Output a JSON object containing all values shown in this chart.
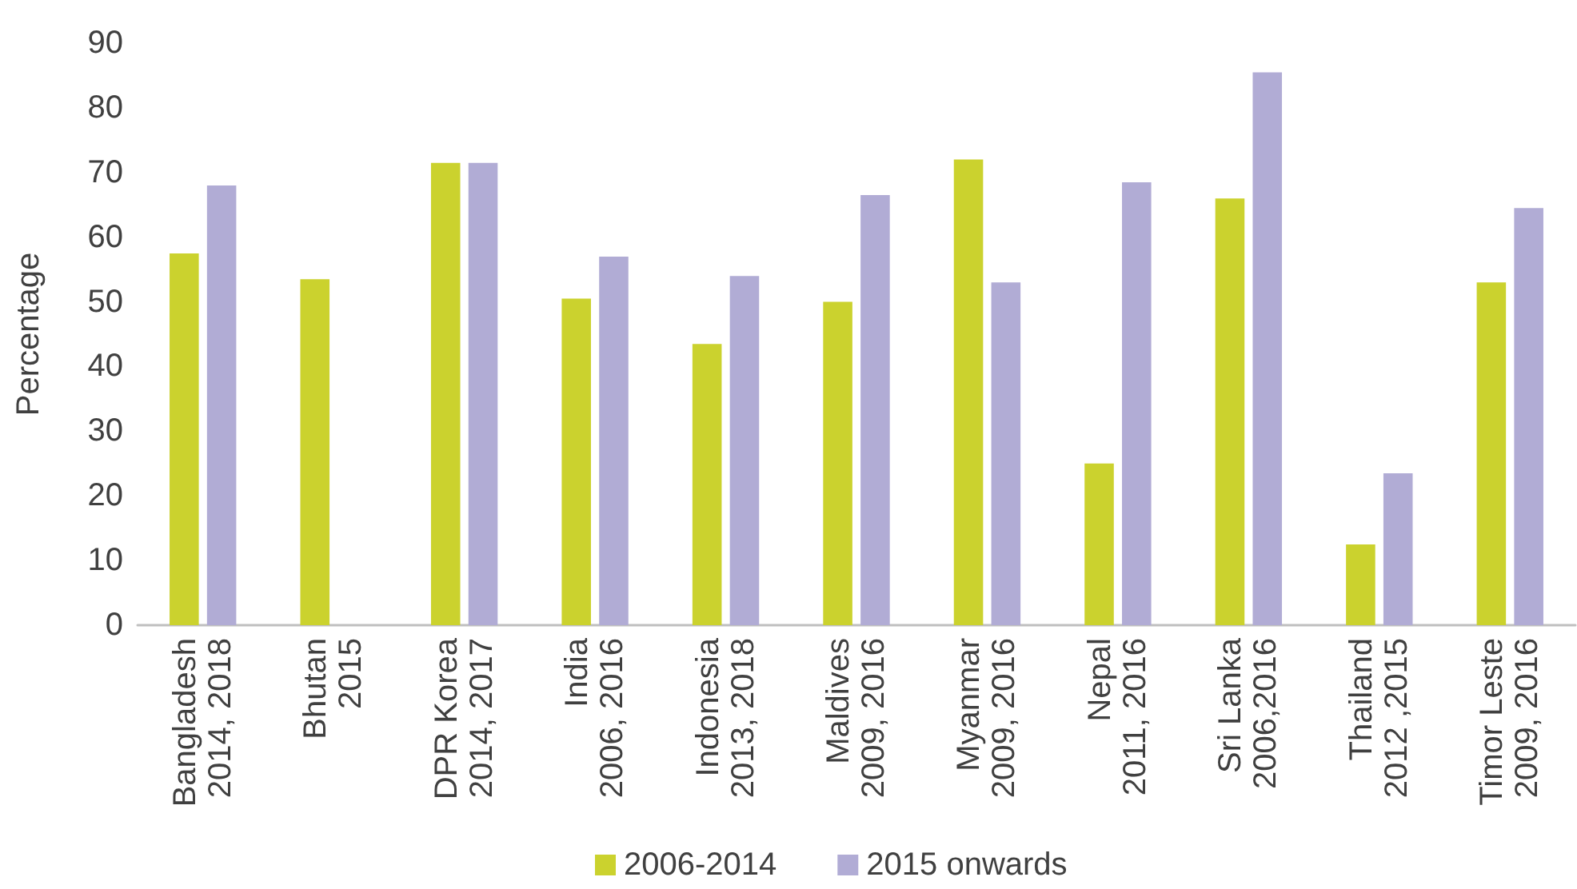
{
  "chart_data": {
    "type": "bar",
    "ylabel": "Percentage",
    "categories": [
      "Bangladesh\n2014, 2018",
      "Bhutan\n2015",
      "DPR Korea\n2014, 2017",
      "India\n2006, 2016",
      "Indonesia\n2013, 2018",
      "Maldives\n2009, 2016",
      "Myanmar\n2009, 2016",
      "Nepal\n2011, 2016",
      "Sri Lanka\n2006,2016",
      "Thailand\n2012 ,2015",
      "Timor Leste\n2009, 2016"
    ],
    "series": [
      {
        "name": "2006-2014",
        "color": "#cbd22e",
        "values": [
          57.5,
          53.5,
          71.5,
          50.5,
          43.5,
          50,
          72,
          25,
          66,
          12.5,
          53
        ]
      },
      {
        "name": "2015 onwards",
        "color": "#b1acd5",
        "values": [
          68,
          null,
          71.5,
          57,
          54,
          66.5,
          53,
          68.5,
          85.5,
          23.5,
          64.5
        ]
      }
    ],
    "ylim": [
      0,
      90
    ],
    "yticks": [
      0,
      10,
      20,
      30,
      40,
      50,
      60,
      70,
      80,
      90
    ],
    "grid": false,
    "legend": "bottom"
  }
}
